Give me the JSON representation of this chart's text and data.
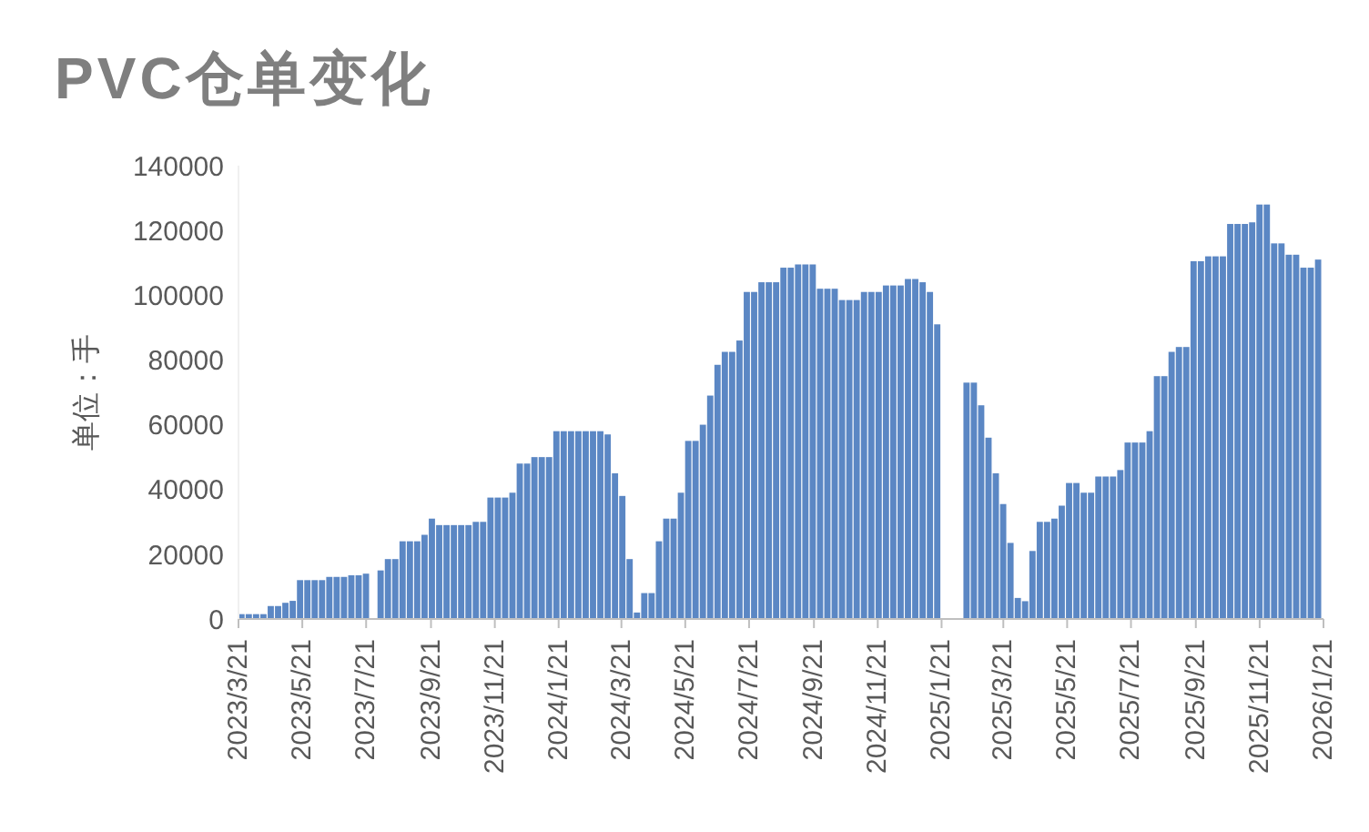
{
  "chart_data": {
    "type": "bar",
    "title": "PVC仓单变化",
    "ylabel": "单位：手",
    "color": "#5b87c4",
    "x": [
      "2023-03-23",
      "2023-03-30",
      "2023-04-06",
      "2023-04-13",
      "2023-04-20",
      "2023-04-27",
      "2023-05-04",
      "2023-05-11",
      "2023-05-18",
      "2023-05-25",
      "2023-06-01",
      "2023-06-08",
      "2023-06-15",
      "2023-06-22",
      "2023-06-29",
      "2023-07-06",
      "2023-07-13",
      "2023-07-20",
      "2023-07-27",
      "2023-08-03",
      "2023-08-10",
      "2023-08-17",
      "2023-08-24",
      "2023-08-31",
      "2023-09-07",
      "2023-09-14",
      "2023-09-21",
      "2023-09-28",
      "2023-10-05",
      "2023-10-12",
      "2023-10-19",
      "2023-10-26",
      "2023-11-02",
      "2023-11-09",
      "2023-11-16",
      "2023-11-23",
      "2023-11-30",
      "2023-12-07",
      "2023-12-14",
      "2023-12-21",
      "2023-12-28",
      "2024-01-04",
      "2024-01-11",
      "2024-01-18",
      "2024-01-25",
      "2024-02-01",
      "2024-02-08",
      "2024-02-15",
      "2024-02-22",
      "2024-02-29",
      "2024-03-07",
      "2024-03-14",
      "2024-03-21",
      "2024-03-28",
      "2024-04-04",
      "2024-04-11",
      "2024-04-18",
      "2024-04-25",
      "2024-05-02",
      "2024-05-09",
      "2024-05-16",
      "2024-05-23",
      "2024-05-30",
      "2024-06-06",
      "2024-06-13",
      "2024-06-20",
      "2024-06-27",
      "2024-07-04",
      "2024-07-11",
      "2024-07-18",
      "2024-07-25",
      "2024-08-01",
      "2024-08-08",
      "2024-08-15",
      "2024-08-22",
      "2024-08-29",
      "2024-09-05",
      "2024-09-12",
      "2024-09-19",
      "2024-09-26",
      "2024-10-03",
      "2024-10-10",
      "2024-10-17",
      "2024-10-24",
      "2024-10-31",
      "2024-11-07",
      "2024-11-14",
      "2024-11-21",
      "2024-11-28",
      "2024-12-05",
      "2024-12-12",
      "2024-12-19",
      "2024-12-26",
      "2025-01-02",
      "2025-01-09",
      "2025-01-16",
      "2025-01-23",
      "2025-01-30",
      "2025-02-06",
      "2025-02-13",
      "2025-02-20",
      "2025-02-27",
      "2025-03-06",
      "2025-03-13",
      "2025-03-20",
      "2025-03-27",
      "2025-04-03",
      "2025-04-10",
      "2025-04-17",
      "2025-04-24",
      "2025-05-01",
      "2025-05-08",
      "2025-05-15",
      "2025-05-22",
      "2025-05-29",
      "2025-06-05",
      "2025-06-12",
      "2025-06-19",
      "2025-06-26",
      "2025-07-03",
      "2025-07-10",
      "2025-07-17",
      "2025-07-24",
      "2025-07-31",
      "2025-08-07",
      "2025-08-14",
      "2025-08-21",
      "2025-08-28",
      "2025-09-04",
      "2025-09-11",
      "2025-09-18",
      "2025-09-25",
      "2025-10-02",
      "2025-10-09",
      "2025-10-16",
      "2025-10-23",
      "2025-10-30",
      "2025-11-06",
      "2025-11-13",
      "2025-11-20",
      "2025-11-27",
      "2025-12-04",
      "2025-12-11",
      "2025-12-18",
      "2025-12-25",
      "2026-01-01",
      "2026-01-08",
      "2026-01-15"
    ],
    "values": [
      1500,
      1500,
      1500,
      1500,
      4000,
      4000,
      5000,
      5600,
      12000,
      12000,
      12000,
      12000,
      13000,
      13000,
      13000,
      13500,
      13500,
      14000,
      null,
      15000,
      18500,
      18500,
      24000,
      24000,
      24000,
      26000,
      31000,
      29000,
      29000,
      29000,
      29000,
      29000,
      30000,
      30000,
      37500,
      37500,
      37500,
      39000,
      48000,
      48000,
      50000,
      50000,
      50000,
      58000,
      58000,
      58000,
      58000,
      58000,
      58000,
      58000,
      57000,
      45000,
      38000,
      18500,
      2000,
      8000,
      8000,
      24000,
      31000,
      31000,
      39000,
      55000,
      55000,
      60000,
      69000,
      78500,
      82500,
      82500,
      86000,
      101000,
      101000,
      104000,
      104000,
      104000,
      108500,
      108500,
      109500,
      109500,
      109500,
      102000,
      102000,
      102000,
      98500,
      98500,
      98500,
      101000,
      101000,
      101000,
      103000,
      103000,
      103000,
      105000,
      105000,
      104000,
      101000,
      91000,
      null,
      null,
      null,
      73000,
      73000,
      66000,
      56000,
      45000,
      35500,
      23500,
      6500,
      5500,
      21000,
      30000,
      30000,
      31000,
      35000,
      42000,
      42000,
      39000,
      39000,
      44000,
      44000,
      44000,
      46000,
      54500,
      54500,
      54500,
      58000,
      75000,
      75000,
      82500,
      84000,
      84000,
      110500,
      110500,
      112000,
      112000,
      112000,
      122000,
      122000,
      122000,
      122500,
      128000,
      128000,
      116000,
      116000,
      112500,
      112500,
      108500,
      108500,
      111000
    ],
    "xlim": [
      "2023-03-21",
      "2026-01-21"
    ],
    "xticks": [
      {
        "value": "2023-03-21",
        "label": "2023/3/21"
      },
      {
        "value": "2023-05-21",
        "label": "2023/5/21"
      },
      {
        "value": "2023-07-21",
        "label": "2023/7/21"
      },
      {
        "value": "2023-09-21",
        "label": "2023/9/21"
      },
      {
        "value": "2023-11-21",
        "label": "2023/11/21"
      },
      {
        "value": "2024-01-21",
        "label": "2024/1/21"
      },
      {
        "value": "2024-03-21",
        "label": "2024/3/21"
      },
      {
        "value": "2024-05-21",
        "label": "2024/5/21"
      },
      {
        "value": "2024-07-21",
        "label": "2024/7/21"
      },
      {
        "value": "2024-09-21",
        "label": "2024/9/21"
      },
      {
        "value": "2024-11-21",
        "label": "2024/11/21"
      },
      {
        "value": "2025-01-21",
        "label": "2025/1/21"
      },
      {
        "value": "2025-03-21",
        "label": "2025/3/21"
      },
      {
        "value": "2025-05-21",
        "label": "2025/5/21"
      },
      {
        "value": "2025-07-21",
        "label": "2025/7/21"
      },
      {
        "value": "2025-09-21",
        "label": "2025/9/21"
      },
      {
        "value": "2025-11-21",
        "label": "2025/11/21"
      },
      {
        "value": "2026-01-21",
        "label": "2026/1/21"
      }
    ],
    "ylim": [
      0,
      140000
    ],
    "yticks": [
      0,
      20000,
      40000,
      60000,
      80000,
      100000,
      120000,
      140000
    ]
  }
}
